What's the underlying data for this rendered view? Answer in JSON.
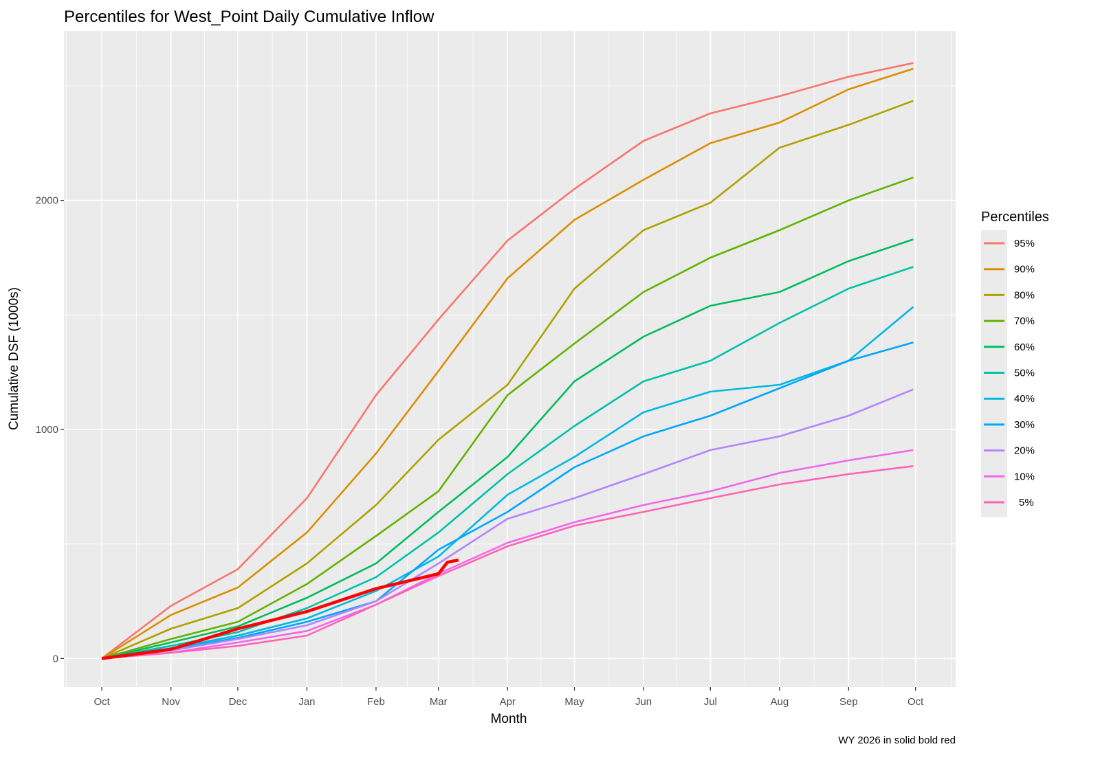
{
  "chart_data": {
    "type": "line",
    "title": "Percentiles for West_Point Daily Cumulative Inflow",
    "xlabel": "Month",
    "ylabel": "Cumulative DSF (1000s)",
    "caption": "WY 2026 in solid  bold red",
    "x_ticks": [
      "Oct",
      "Nov",
      "Dec",
      "Jan",
      "Feb",
      "Mar",
      "Apr",
      "May",
      "Jun",
      "Jul",
      "Aug",
      "Sep",
      "Oct"
    ],
    "y_ticks": [
      0,
      1000,
      2000
    ],
    "ylim": [
      -125,
      2740
    ],
    "grid": true,
    "legend": {
      "title": "Percentiles",
      "placement": "right"
    },
    "x": [
      "Oct 1",
      "Nov 1",
      "Dec 1",
      "Jan 1",
      "Feb 1",
      "Mar 1",
      "Apr 1",
      "May 1",
      "Jun 1",
      "Jul 1",
      "Aug 1",
      "Sep 1",
      "Sep 30"
    ],
    "series": [
      {
        "name": "95%",
        "color": "#F8766D",
        "values": [
          0,
          230,
          390,
          700,
          1150,
          1480,
          1825,
          2050,
          2260,
          2380,
          2455,
          2540,
          2600
        ]
      },
      {
        "name": "90%",
        "color": "#DB8E00",
        "values": [
          0,
          190,
          310,
          550,
          895,
          1255,
          1660,
          1915,
          2090,
          2250,
          2340,
          2485,
          2575
        ]
      },
      {
        "name": "80%",
        "color": "#AEA200",
        "values": [
          0,
          130,
          220,
          415,
          670,
          955,
          1195,
          1615,
          1870,
          1990,
          2230,
          2330,
          2435
        ]
      },
      {
        "name": "70%",
        "color": "#64B200",
        "values": [
          0,
          85,
          160,
          325,
          535,
          730,
          1150,
          1375,
          1600,
          1750,
          1870,
          2000,
          2100
        ]
      },
      {
        "name": "60%",
        "color": "#00BD5C",
        "values": [
          0,
          70,
          140,
          265,
          415,
          640,
          880,
          1210,
          1405,
          1540,
          1600,
          1735,
          1830
        ]
      },
      {
        "name": "50%",
        "color": "#00C1A7",
        "values": [
          0,
          55,
          115,
          220,
          355,
          550,
          805,
          1015,
          1210,
          1300,
          1465,
          1615,
          1710
        ]
      },
      {
        "name": "40%",
        "color": "#00BADE",
        "values": [
          0,
          45,
          100,
          175,
          295,
          445,
          715,
          880,
          1075,
          1165,
          1195,
          1300,
          1535
        ]
      },
      {
        "name": "30%",
        "color": "#00A6FF",
        "values": [
          0,
          40,
          90,
          160,
          250,
          475,
          640,
          835,
          970,
          1060,
          1180,
          1300,
          1380
        ]
      },
      {
        "name": "20%",
        "color": "#B385FF",
        "values": [
          0,
          35,
          85,
          145,
          250,
          415,
          610,
          700,
          805,
          910,
          970,
          1060,
          1175
        ]
      },
      {
        "name": "10%",
        "color": "#EF67EB",
        "values": [
          0,
          25,
          70,
          120,
          235,
          370,
          505,
          595,
          670,
          730,
          810,
          865,
          910
        ]
      },
      {
        "name": " 5%",
        "color": "#FF63B6",
        "values": [
          0,
          25,
          55,
          100,
          235,
          360,
          490,
          580,
          640,
          700,
          760,
          805,
          840
        ]
      }
    ],
    "current_year": {
      "color": "#FF0000",
      "x": [
        "Oct 1",
        "Nov 1",
        "Dec 1",
        "Jan 1",
        "Feb 1",
        "Mar 1",
        "Mar 5",
        "Mar 10"
      ],
      "values": [
        0,
        40,
        130,
        205,
        305,
        370,
        420,
        430
      ]
    }
  }
}
